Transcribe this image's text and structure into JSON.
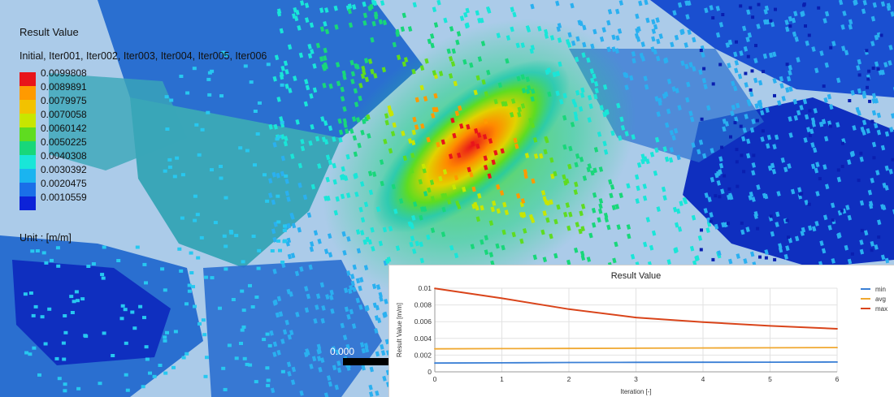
{
  "legend": {
    "title": "Result Value",
    "subtitle": "Initial, Iter001, Iter002, Iter003, Iter004, Iter005, Iter006",
    "levels": [
      "0.0099808",
      "0.0089891",
      "0.0079975",
      "0.0070058",
      "0.0060142",
      "0.0050225",
      "0.0040308",
      "0.0030392",
      "0.0020475",
      "0.0010559"
    ],
    "colors": [
      "#e8141a",
      "#ff9a00",
      "#f2c200",
      "#c8e600",
      "#5fdc20",
      "#18d77a",
      "#19e6d8",
      "#1ab4f0",
      "#1a6fe8",
      "#0c22d8"
    ],
    "unit": "Unit : [m/m]"
  },
  "scale_bar": {
    "label": "0.000"
  },
  "field_colors": {
    "background": "#e9ecef",
    "deep_blue": "#0f2fbf",
    "mid_blue": "#2a6fd0",
    "light_blue": "#3a8fe0",
    "teal": "#3aa6b8",
    "hotspot": "#e8141a"
  },
  "chart_data": {
    "type": "line",
    "title": "Result Value",
    "xlabel": "Iteration [-]",
    "ylabel": "Result Value [m/m]",
    "x": [
      0,
      1,
      2,
      3,
      4,
      5,
      6
    ],
    "xlim": [
      0,
      6
    ],
    "ylim": [
      0,
      0.01
    ],
    "yticks": [
      "0",
      "0.002",
      "0.004",
      "0.006",
      "0.008",
      "0.01"
    ],
    "xticks": [
      "0",
      "1",
      "2",
      "3",
      "4",
      "5",
      "6"
    ],
    "grid": true,
    "legend_position": "right",
    "series": [
      {
        "name": "min",
        "color": "#3a7fd5",
        "values": [
          0.00105,
          0.00108,
          0.00112,
          0.00114,
          0.00115,
          0.00116,
          0.00117
        ]
      },
      {
        "name": "avg",
        "color": "#f0a830",
        "values": [
          0.00275,
          0.00278,
          0.0028,
          0.00283,
          0.00285,
          0.00287,
          0.0029
        ]
      },
      {
        "name": "max",
        "color": "#d9441a",
        "values": [
          0.00998,
          0.0088,
          0.0075,
          0.0065,
          0.00595,
          0.0055,
          0.00515
        ]
      }
    ]
  }
}
